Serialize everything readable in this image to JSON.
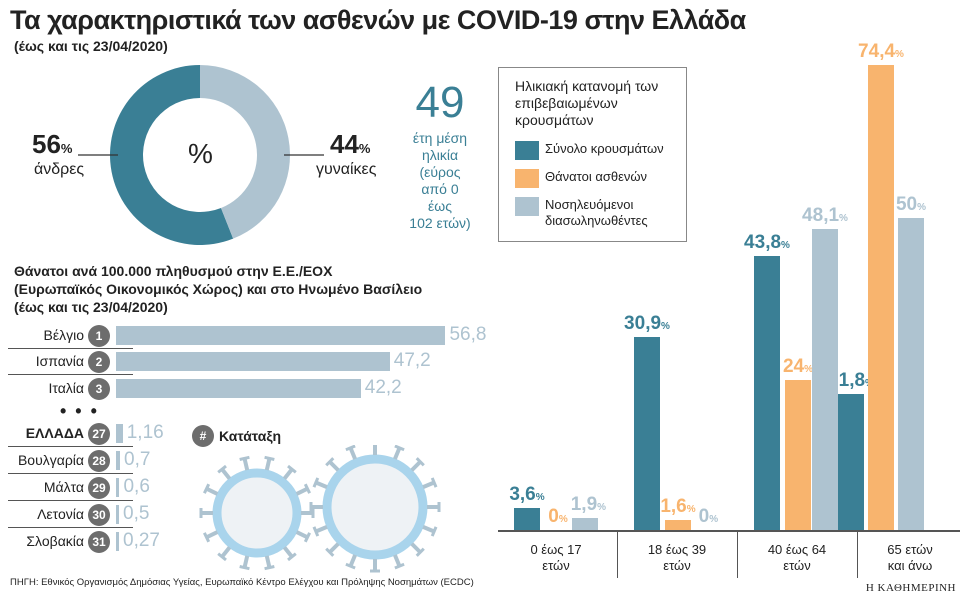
{
  "title": "Τα χαρακτηριστικά των ασθενών με COVID-19 στην Ελλάδα",
  "subtitle": "(έως και τις 23/04/2020)",
  "gender": {
    "center_label": "%",
    "men_value": "56",
    "men_label": "άνδρες",
    "women_value": "44",
    "women_label": "γυναίκες",
    "pct": "%",
    "men_color": "#3a7f95",
    "women_color": "#aec3d0"
  },
  "age": {
    "value": "49",
    "text": [
      "έτη μέση",
      "ηλικία",
      "(εύρος",
      "από 0",
      "έως",
      "102 ετών)"
    ]
  },
  "deaths": {
    "title": [
      "Θάνατοι ανά 100.000 πληθυσμού στην Ε.Ε./ΕΟΧ",
      "(Ευρωπαϊκός Οικονομικός Χώρος) και στο Ηνωμένο Βασίλειο",
      "(έως και τις 23/04/2020)"
    ],
    "dots": "• • •",
    "rank_legend": "Κατάταξη",
    "rank_symbol": "#",
    "rows": [
      {
        "country": "Βέλγιο",
        "rank": "1",
        "value": 56.8,
        "label": "56,8"
      },
      {
        "country": "Ισπανία",
        "rank": "2",
        "value": 47.2,
        "label": "47,2"
      },
      {
        "country": "Ιταλία",
        "rank": "3",
        "value": 42.2,
        "label": "42,2"
      },
      {
        "country": "ΕΛΛΑΔΑ",
        "rank": "27",
        "value": 1.16,
        "label": "1,16"
      },
      {
        "country": "Βουλγαρία",
        "rank": "28",
        "value": 0.7,
        "label": "0,7"
      },
      {
        "country": "Μάλτα",
        "rank": "29",
        "value": 0.6,
        "label": "0,6"
      },
      {
        "country": "Λετονία",
        "rank": "30",
        "value": 0.5,
        "label": "0,5"
      },
      {
        "country": "Σλοβακία",
        "rank": "31",
        "value": 0.27,
        "label": "0,27"
      }
    ]
  },
  "chart_data": {
    "type": "bar",
    "title": "Ηλικιακή κατανομή των επιβεβαιωμένων κρουσμάτων",
    "categories": [
      "0 έως 17 ετών",
      "18 έως 39 ετών",
      "40 έως 64 ετών",
      "65 ετών και άνω"
    ],
    "categories_lines": [
      [
        "0 έως 17",
        "ετών"
      ],
      [
        "18 έως 39",
        "ετών"
      ],
      [
        "40 έως 64",
        "ετών"
      ],
      [
        "65 ετών",
        "και άνω"
      ]
    ],
    "series": [
      {
        "name": "Σύνολο κρουσμάτων",
        "color": "#3a7f95",
        "values": [
          3.6,
          30.9,
          43.8,
          21.8
        ],
        "labels": [
          "3,6",
          "30,9",
          "43,8",
          "21,8"
        ]
      },
      {
        "name": "Θάνατοι ασθενών",
        "color": "#f8b46e",
        "values": [
          0,
          1.6,
          24,
          74.4
        ],
        "labels": [
          "0",
          "1,6",
          "24",
          "74,4"
        ]
      },
      {
        "name": "Νοσηλευόμενοι διασωληνωθέντες",
        "color": "#aec3d0",
        "values": [
          1.9,
          0,
          48.1,
          50
        ],
        "labels": [
          "1,9",
          "0",
          "48,1",
          "50"
        ]
      }
    ],
    "unit": "%",
    "legend": "top-left"
  },
  "source": "ΠΗΓΗ: Εθνικός Οργανισμός Δημόσιας Υγείας, Ευρωπαϊκό Κέντρο Ελέγχου και Πρόληψης Νοσημάτων (ECDC)",
  "logo": "Η ΚΑΘΗΜΕΡΙΝΗ"
}
